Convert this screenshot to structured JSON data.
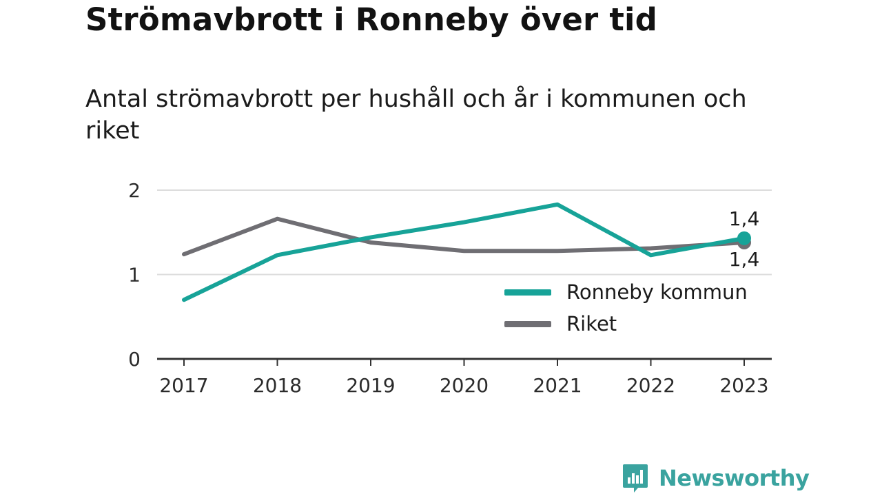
{
  "header": {
    "title": "Strömavbrott i Ronneby över tid",
    "subtitle": "Antal strömavbrott per hushåll och år i kommunen och riket"
  },
  "legend": {
    "items": [
      {
        "label": "Ronneby kommun",
        "color": "#17a398"
      },
      {
        "label": "Riket",
        "color": "#6f6e73"
      }
    ]
  },
  "brand": {
    "name": "Newsworthy",
    "icon": "bar-chart-speech-bubble-icon",
    "color": "#3aa39f"
  },
  "chart_data": {
    "type": "line",
    "x": [
      "2017",
      "2018",
      "2019",
      "2020",
      "2021",
      "2022",
      "2023"
    ],
    "ylim": [
      0,
      2
    ],
    "yticks": [
      "0",
      "1",
      "2"
    ],
    "grid": true,
    "legend_position": "bottom-right",
    "series": [
      {
        "name": "Ronneby kommun",
        "color": "#17a398",
        "values": [
          0.7,
          1.23,
          1.44,
          1.62,
          1.83,
          1.23,
          1.43
        ],
        "end_label": "1,4"
      },
      {
        "name": "Riket",
        "color": "#6f6e73",
        "values": [
          1.24,
          1.66,
          1.38,
          1.28,
          1.28,
          1.31,
          1.38
        ],
        "end_label": "1,4"
      }
    ]
  }
}
